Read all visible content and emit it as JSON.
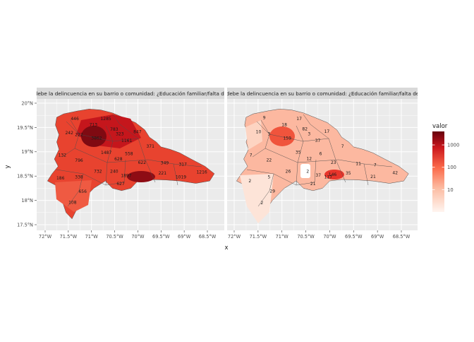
{
  "panels": [
    {
      "strip": "d que se debe la delincuencia en su barrio o comunidad: ¿Educación familiar/falta de valores?",
      "labels": [
        {
          "value": "446",
          "lon": -71.36,
          "lat": 19.68
        },
        {
          "value": "1285",
          "lon": -70.69,
          "lat": 19.68
        },
        {
          "value": "713",
          "lon": -70.96,
          "lat": 19.56
        },
        {
          "value": "783",
          "lon": -70.51,
          "lat": 19.46
        },
        {
          "value": "242",
          "lon": -71.48,
          "lat": 19.39
        },
        {
          "value": "222",
          "lon": -71.27,
          "lat": 19.35
        },
        {
          "value": "3862",
          "lon": -70.89,
          "lat": 19.28
        },
        {
          "value": "323",
          "lon": -70.39,
          "lat": 19.37
        },
        {
          "value": "847",
          "lon": -70.01,
          "lat": 19.41
        },
        {
          "value": "1161",
          "lon": -70.24,
          "lat": 19.23
        },
        {
          "value": "371",
          "lon": -69.73,
          "lat": 19.11
        },
        {
          "value": "132",
          "lon": -71.63,
          "lat": 18.93
        },
        {
          "value": "1487",
          "lon": -70.68,
          "lat": 18.98
        },
        {
          "value": "558",
          "lon": -70.19,
          "lat": 18.96
        },
        {
          "value": "796",
          "lon": -71.27,
          "lat": 18.82
        },
        {
          "value": "628",
          "lon": -70.42,
          "lat": 18.85
        },
        {
          "value": "622",
          "lon": -69.91,
          "lat": 18.78
        },
        {
          "value": "349",
          "lon": -69.42,
          "lat": 18.77
        },
        {
          "value": "317",
          "lon": -69.03,
          "lat": 18.74
        },
        {
          "value": "732",
          "lon": -70.86,
          "lat": 18.6
        },
        {
          "value": "240",
          "lon": -70.51,
          "lat": 18.6
        },
        {
          "value": "1897",
          "lon": -70.25,
          "lat": 18.51
        },
        {
          "value": "221",
          "lon": -69.47,
          "lat": 18.56
        },
        {
          "value": "1216",
          "lon": -68.62,
          "lat": 18.58
        },
        {
          "value": "1019",
          "lon": -69.07,
          "lat": 18.48
        },
        {
          "value": "186",
          "lon": -71.67,
          "lat": 18.46
        },
        {
          "value": "338",
          "lon": -71.27,
          "lat": 18.48
        },
        {
          "value": "627",
          "lon": -70.37,
          "lat": 18.34
        },
        {
          "value": "656",
          "lon": -71.19,
          "lat": 18.18
        },
        {
          "value": "108",
          "lon": -71.41,
          "lat": 17.96
        }
      ]
    },
    {
      "strip": "d que se debe la delincuencia en su barrio o comunidad: ¿Educación familiar/falta de valores?",
      "labels": [
        {
          "value": "9",
          "lon": -71.37,
          "lat": 19.7
        },
        {
          "value": "17",
          "lon": -70.64,
          "lat": 19.68
        },
        {
          "value": "18",
          "lon": -70.95,
          "lat": 19.56
        },
        {
          "value": "82",
          "lon": -70.52,
          "lat": 19.47
        },
        {
          "value": "17",
          "lon": -70.06,
          "lat": 19.42
        },
        {
          "value": "10",
          "lon": -71.49,
          "lat": 19.41
        },
        {
          "value": "3",
          "lon": -71.27,
          "lat": 19.37
        },
        {
          "value": "3",
          "lon": -70.43,
          "lat": 19.37
        },
        {
          "value": "159",
          "lon": -70.89,
          "lat": 19.28
        },
        {
          "value": "37",
          "lon": -70.25,
          "lat": 19.23
        },
        {
          "value": "7",
          "lon": -69.73,
          "lat": 19.11
        },
        {
          "value": "7",
          "lon": -71.65,
          "lat": 18.93
        },
        {
          "value": "35",
          "lon": -70.66,
          "lat": 18.99
        },
        {
          "value": "6",
          "lon": -70.19,
          "lat": 18.96
        },
        {
          "value": "22",
          "lon": -71.27,
          "lat": 18.83
        },
        {
          "value": "12",
          "lon": -70.43,
          "lat": 18.86
        },
        {
          "value": "23",
          "lon": -69.92,
          "lat": 18.78
        },
        {
          "value": "11",
          "lon": -69.4,
          "lat": 18.76
        },
        {
          "value": "7",
          "lon": -69.05,
          "lat": 18.73
        },
        {
          "value": "26",
          "lon": -70.87,
          "lat": 18.6
        },
        {
          "value": "2",
          "lon": -70.46,
          "lat": 18.6
        },
        {
          "value": "37",
          "lon": -70.24,
          "lat": 18.52
        },
        {
          "value": "146",
          "lon": -69.94,
          "lat": 18.53
        },
        {
          "value": "117",
          "lon": -70.03,
          "lat": 18.48
        },
        {
          "value": "35",
          "lon": -69.61,
          "lat": 18.56
        },
        {
          "value": "21",
          "lon": -69.09,
          "lat": 18.49
        },
        {
          "value": "42",
          "lon": -68.63,
          "lat": 18.57
        },
        {
          "value": "5",
          "lon": -71.27,
          "lat": 18.48
        },
        {
          "value": "2",
          "lon": -71.67,
          "lat": 18.4
        },
        {
          "value": "21",
          "lon": -70.35,
          "lat": 18.34
        },
        {
          "value": "29",
          "lon": -71.2,
          "lat": 18.19
        },
        {
          "value": "2",
          "lon": -71.42,
          "lat": 17.95
        }
      ]
    }
  ],
  "xAxis": {
    "title": "x",
    "ticks": [
      {
        "lon": -72.0,
        "label": "72°W"
      },
      {
        "lon": -71.5,
        "label": "71.5°W"
      },
      {
        "lon": -71.0,
        "label": "71°W"
      },
      {
        "lon": -70.5,
        "label": "70.5°W"
      },
      {
        "lon": -70.0,
        "label": "70°W"
      },
      {
        "lon": -69.5,
        "label": "69.5°W"
      },
      {
        "lon": -69.0,
        "label": "69°W"
      },
      {
        "lon": -68.5,
        "label": "68.5°W"
      }
    ]
  },
  "yAxis": {
    "title": "y",
    "ticks": [
      {
        "lat": 20.0,
        "label": "20°N"
      },
      {
        "lat": 19.5,
        "label": "19.5°N"
      },
      {
        "lat": 19.0,
        "label": "19°N"
      },
      {
        "lat": 18.5,
        "label": "18.5°N"
      },
      {
        "lat": 18.0,
        "label": "18°N"
      },
      {
        "lat": 17.5,
        "label": "17.5°N"
      }
    ]
  },
  "legend": {
    "title": "valor",
    "scale": "log10",
    "colors": [
      "#fff5f0",
      "#fcbba1",
      "#fb6a4a",
      "#cb181d",
      "#67000d"
    ],
    "breaks": [
      {
        "value": 10,
        "label": "10"
      },
      {
        "value": 100,
        "label": "100"
      },
      {
        "value": 1000,
        "label": "1000"
      }
    ]
  }
}
